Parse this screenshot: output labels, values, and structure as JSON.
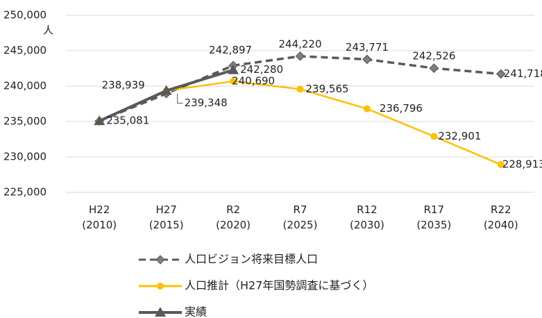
{
  "chart_data": {
    "type": "line",
    "unit_label": "人",
    "categories": [
      [
        "H22",
        "(2010)"
      ],
      [
        "H27",
        "(2015)"
      ],
      [
        "R2",
        "(2020)"
      ],
      [
        "R7",
        "(2025)"
      ],
      [
        "R12",
        "(2030)"
      ],
      [
        "R17",
        "(2035)"
      ],
      [
        "R22",
        "(2040)"
      ]
    ],
    "ylim": [
      225000,
      250000
    ],
    "yticks": [
      {
        "value": 225000,
        "label": "225,000"
      },
      {
        "value": 230000,
        "label": "230,000"
      },
      {
        "value": 235000,
        "label": "235,000"
      },
      {
        "value": 240000,
        "label": "240,000"
      },
      {
        "value": 245000,
        "label": "245,000"
      },
      {
        "value": 250000,
        "label": "250,000"
      }
    ],
    "grid": true,
    "legend": "bottom",
    "series": [
      {
        "name": "人口ビジョン将来目標人口",
        "color": "#595959",
        "dash": true,
        "marker": "diamond",
        "values": [
          235081,
          238939,
          242897,
          244220,
          243771,
          242526,
          241718
        ],
        "value_labels": [
          null,
          "238,939",
          "242,897",
          "244,220",
          "243,771",
          "242,526",
          "241,718"
        ]
      },
      {
        "name": "人口推計（H27年国勢調査に基づく）",
        "color": "#ffc000",
        "dash": false,
        "marker": "circle",
        "values": [
          235081,
          239348,
          240690,
          239565,
          236796,
          232901,
          228913
        ],
        "value_labels": [
          null,
          null,
          "240,690",
          "239,565",
          "236,796",
          "232,901",
          "228,913"
        ]
      },
      {
        "name": "実績",
        "color": "#595959",
        "dash": false,
        "marker": "triangle",
        "values": [
          235081,
          239348,
          242280,
          null,
          null,
          null,
          null
        ],
        "value_labels": [
          "235,081",
          "239,348",
          "242,280",
          null,
          null,
          null,
          null
        ]
      }
    ]
  }
}
